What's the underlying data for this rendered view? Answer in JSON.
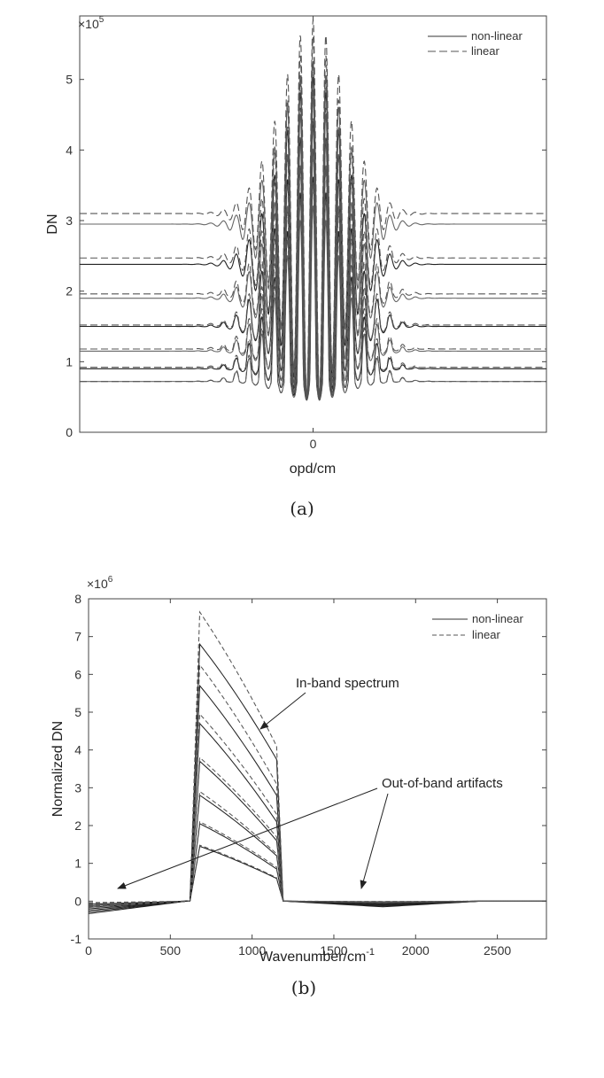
{
  "chart_data": [
    {
      "type": "line",
      "panel_label": "(a)",
      "xlabel": "opd/cm",
      "ylabel": "DN",
      "y_multiplier": "×10^5",
      "multiplier_base": "×10",
      "multiplier_exp": "5",
      "x_ticks": [
        "0"
      ],
      "y_ticks": [
        "0",
        "1",
        "2",
        "3",
        "4",
        "5"
      ],
      "xlim": [
        -1,
        1
      ],
      "ylim": [
        0,
        5.9
      ],
      "legend": {
        "placement": "top-right",
        "entries": [
          "non-linear",
          "linear"
        ]
      },
      "grid": false,
      "series": [
        {
          "name": "non-linear",
          "baselines": [
            0.72,
            0.9,
            1.15,
            1.5,
            1.9,
            2.38,
            2.95
          ],
          "center_peak": 5.25,
          "center_min": 0.45
        },
        {
          "name": "linear",
          "baselines": [
            0.72,
            0.92,
            1.18,
            1.52,
            1.96,
            2.47,
            3.1
          ],
          "center_peak": 5.85,
          "center_min": 0.45
        }
      ]
    },
    {
      "type": "line",
      "panel_label": "(b)",
      "xlabel": "Wavenumber/cm",
      "xlabel_sup": "-1",
      "ylabel": "Normalized DN",
      "y_multiplier": "×10^6",
      "multiplier_base": "×10",
      "multiplier_exp": "6",
      "x_ticks": [
        "0",
        "500",
        "1000",
        "1500",
        "2000",
        "2500"
      ],
      "y_ticks": [
        "-1",
        "0",
        "1",
        "2",
        "3",
        "4",
        "5",
        "6",
        "7",
        "8"
      ],
      "xlim": [
        0,
        2800
      ],
      "ylim": [
        -1,
        8
      ],
      "legend": {
        "placement": "top-right",
        "entries": [
          "non-linear",
          "linear"
        ]
      },
      "grid": false,
      "band_x": [
        620,
        680,
        1150,
        1190
      ],
      "series": [
        {
          "name": "non-linear",
          "peaks_at_680": [
            1.45,
            2.05,
            2.8,
            3.7,
            4.7,
            5.7,
            6.8
          ],
          "values_at_1150": [
            0.6,
            0.85,
            1.2,
            1.6,
            2.1,
            2.8,
            3.75
          ]
        },
        {
          "name": "linear",
          "peaks_at_680": [
            1.48,
            2.1,
            2.9,
            3.8,
            4.95,
            6.25,
            7.65
          ],
          "values_at_1150": [
            0.62,
            0.9,
            1.25,
            1.7,
            2.3,
            3.1,
            4.1
          ]
        }
      ],
      "annotations": [
        "In-band spectrum",
        "Out-of-band artifacts"
      ]
    }
  ]
}
